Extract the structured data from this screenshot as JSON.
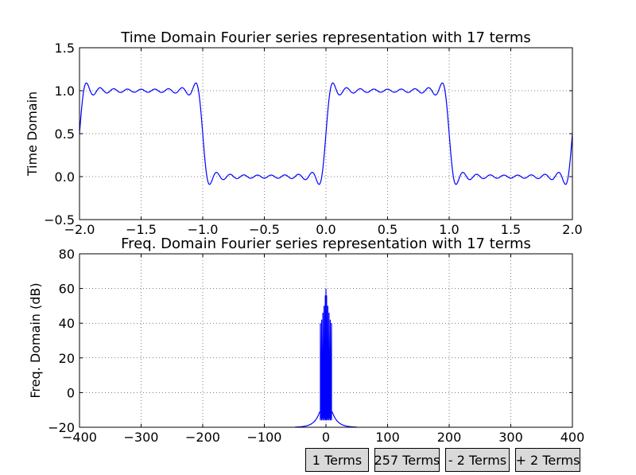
{
  "chart_data": [
    {
      "type": "line",
      "title": "Time Domain Fourier series representation with 17 terms",
      "xlabel": "",
      "ylabel": "Time Domain",
      "xlim": [
        -2.0,
        2.0
      ],
      "ylim": [
        -0.5,
        1.5
      ],
      "xticks": [
        "−2.0",
        "−1.5",
        "−1.0",
        "−0.5",
        "0.0",
        "0.5",
        "1.0",
        "1.5",
        "2.0"
      ],
      "yticks": [
        "−0.5",
        "0.0",
        "0.5",
        "1.0",
        "1.5"
      ],
      "grid": true,
      "series_color": "#0000ff",
      "series": [
        {
          "description_of_shape": "square wave with period 2 (0.5 offset, amplitude 0.5), Fourier series with 17 terms",
          "dc": 0.5,
          "amplitude": 0.5,
          "period": 2.0,
          "terms": 17
        }
      ]
    },
    {
      "type": "line",
      "title": "Freq. Domain Fourier series representation with 17 terms",
      "xlabel": "",
      "ylabel": "Freq. Domain (dB)",
      "xlim": [
        -400,
        400
      ],
      "ylim": [
        -20,
        80
      ],
      "xticks": [
        "−400",
        "−300",
        "−200",
        "−100",
        "0",
        "100",
        "200",
        "300",
        "400"
      ],
      "yticks": [
        "−20",
        "0",
        "20",
        "40",
        "60",
        "80"
      ],
      "grid": true,
      "series_color": "#0000ff",
      "peaks": [
        {
          "x": -9,
          "y": 40
        },
        {
          "x": -7,
          "y": 42
        },
        {
          "x": -5,
          "y": 46
        },
        {
          "x": -3,
          "y": 50
        },
        {
          "x": -1,
          "y": 56
        },
        {
          "x": 0,
          "y": 60
        },
        {
          "x": 1,
          "y": 56
        },
        {
          "x": 3,
          "y": 50
        },
        {
          "x": 5,
          "y": 46
        },
        {
          "x": 7,
          "y": 42
        },
        {
          "x": 9,
          "y": 40
        }
      ]
    }
  ],
  "buttons": [
    {
      "label": "1 Terms"
    },
    {
      "label": "257 Terms"
    },
    {
      "label": "- 2 Terms"
    },
    {
      "label": "+ 2 Terms"
    }
  ]
}
